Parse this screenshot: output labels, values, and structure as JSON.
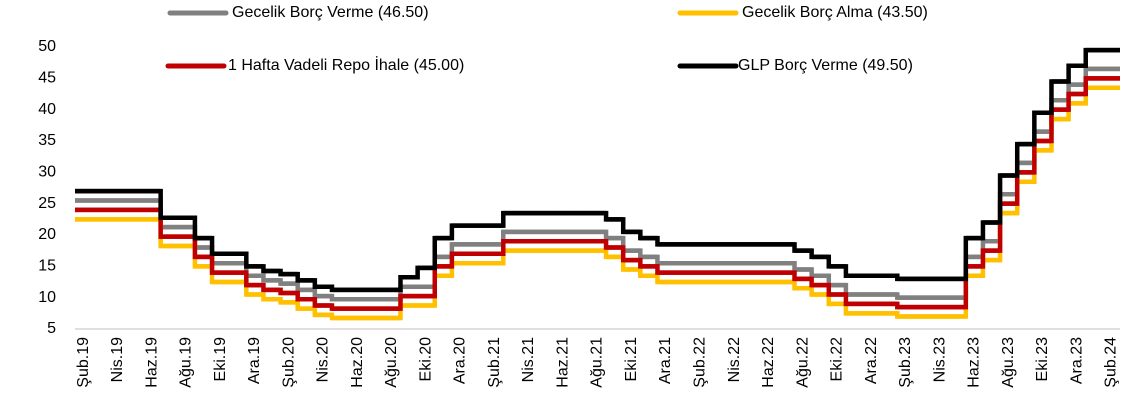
{
  "chart_data": {
    "type": "step-line",
    "categories": [
      "Şub.19",
      null,
      "Nis.19",
      null,
      "Haz.19",
      null,
      "Ağu.19",
      null,
      "Eki.19",
      null,
      "Ara.19",
      null,
      "Şub.20",
      null,
      "Nis.20",
      null,
      "Haz.20",
      null,
      "Ağu.20",
      null,
      "Eki.20",
      null,
      "Ara.20",
      null,
      "Şub.21",
      null,
      "Nis.21",
      null,
      "Haz.21",
      null,
      "Ağu.21",
      null,
      "Eki.21",
      null,
      "Ara.21",
      null,
      "Şub.22",
      null,
      "Nis.22",
      null,
      "Haz.22",
      null,
      "Ağu.22",
      null,
      "Eki.22",
      null,
      "Ara.22",
      null,
      "Şub.23",
      null,
      "Nis.23",
      null,
      "Haz.23",
      null,
      "Ağu.23",
      null,
      "Eki.23",
      null,
      "Ara.23",
      null,
      "Şub.24"
    ],
    "series": [
      {
        "name": "Gecelik Borç Verme (46.50)",
        "color": "#808080",
        "values": [
          25.5,
          25.5,
          25.5,
          25.5,
          25.5,
          21.25,
          21.25,
          18,
          15.5,
          15.5,
          13.5,
          12.75,
          12.25,
          11.25,
          10.25,
          9.75,
          9.75,
          9.75,
          9.75,
          11.75,
          11.75,
          16.5,
          18.5,
          18.5,
          18.5,
          20.5,
          20.5,
          20.5,
          20.5,
          20.5,
          20.5,
          19.5,
          17.5,
          16.5,
          15.5,
          15.5,
          15.5,
          15.5,
          15.5,
          15.5,
          15.5,
          15.5,
          14.5,
          13.5,
          12,
          10.5,
          10.5,
          10.5,
          10,
          10,
          10,
          10,
          16.5,
          19,
          26.5,
          31.5,
          36.5,
          41.5,
          44,
          46.5,
          46.5
        ]
      },
      {
        "name": "Gecelik Borç Alma (43.50)",
        "color": "#FFC000",
        "values": [
          22.5,
          22.5,
          22.5,
          22.5,
          22.5,
          18.25,
          18.25,
          15,
          12.5,
          12.5,
          10.5,
          9.75,
          9.25,
          8.25,
          7.25,
          6.75,
          6.75,
          6.75,
          6.75,
          8.75,
          8.75,
          13.5,
          15.5,
          15.5,
          15.5,
          17.5,
          17.5,
          17.5,
          17.5,
          17.5,
          17.5,
          16.5,
          14.5,
          13.5,
          12.5,
          12.5,
          12.5,
          12.5,
          12.5,
          12.5,
          12.5,
          12.5,
          11.5,
          10.5,
          9,
          7.5,
          7.5,
          7.5,
          7,
          7,
          7,
          7,
          13.5,
          16,
          23.5,
          28.5,
          33.5,
          38.5,
          41,
          43.5,
          43.5
        ]
      },
      {
        "name": "1 Hafta Vadeli Repo İhale (45.00)",
        "color": "#C00000",
        "values": [
          24,
          24,
          24,
          24,
          24,
          19.75,
          19.75,
          16.5,
          14,
          14,
          12,
          11.25,
          10.75,
          9.75,
          8.75,
          8.25,
          8.25,
          8.25,
          8.25,
          10.25,
          10.25,
          15,
          17,
          17,
          17,
          19,
          19,
          19,
          19,
          19,
          19,
          18,
          16,
          15,
          14,
          14,
          14,
          14,
          14,
          14,
          14,
          14,
          13,
          12,
          10.5,
          9,
          9,
          9,
          8.5,
          8.5,
          8.5,
          8.5,
          15,
          17.5,
          25,
          30,
          35,
          40,
          42.5,
          45,
          45
        ]
      },
      {
        "name": "GLP Borç Verme (49.50)",
        "color": "#000000",
        "values": [
          27,
          27,
          27,
          27,
          27,
          22.75,
          22.75,
          19.5,
          17,
          17,
          15,
          14.25,
          13.75,
          12.75,
          11.75,
          11.25,
          11.25,
          11.25,
          11.25,
          13.25,
          14.75,
          19.5,
          21.5,
          21.5,
          21.5,
          23.5,
          23.5,
          23.5,
          23.5,
          23.5,
          23.5,
          22.5,
          20.5,
          19.5,
          18.5,
          18.5,
          18.5,
          18.5,
          18.5,
          18.5,
          18.5,
          18.5,
          17.5,
          16.5,
          15,
          13.5,
          13.5,
          13.5,
          13,
          13,
          13,
          13,
          19.5,
          22,
          29.5,
          34.5,
          39.5,
          44.5,
          47,
          49.5,
          49.5
        ]
      }
    ],
    "ylim": [
      5,
      50
    ],
    "yticks": [
      5,
      10,
      15,
      20,
      25,
      30,
      35,
      40,
      45,
      50
    ]
  }
}
